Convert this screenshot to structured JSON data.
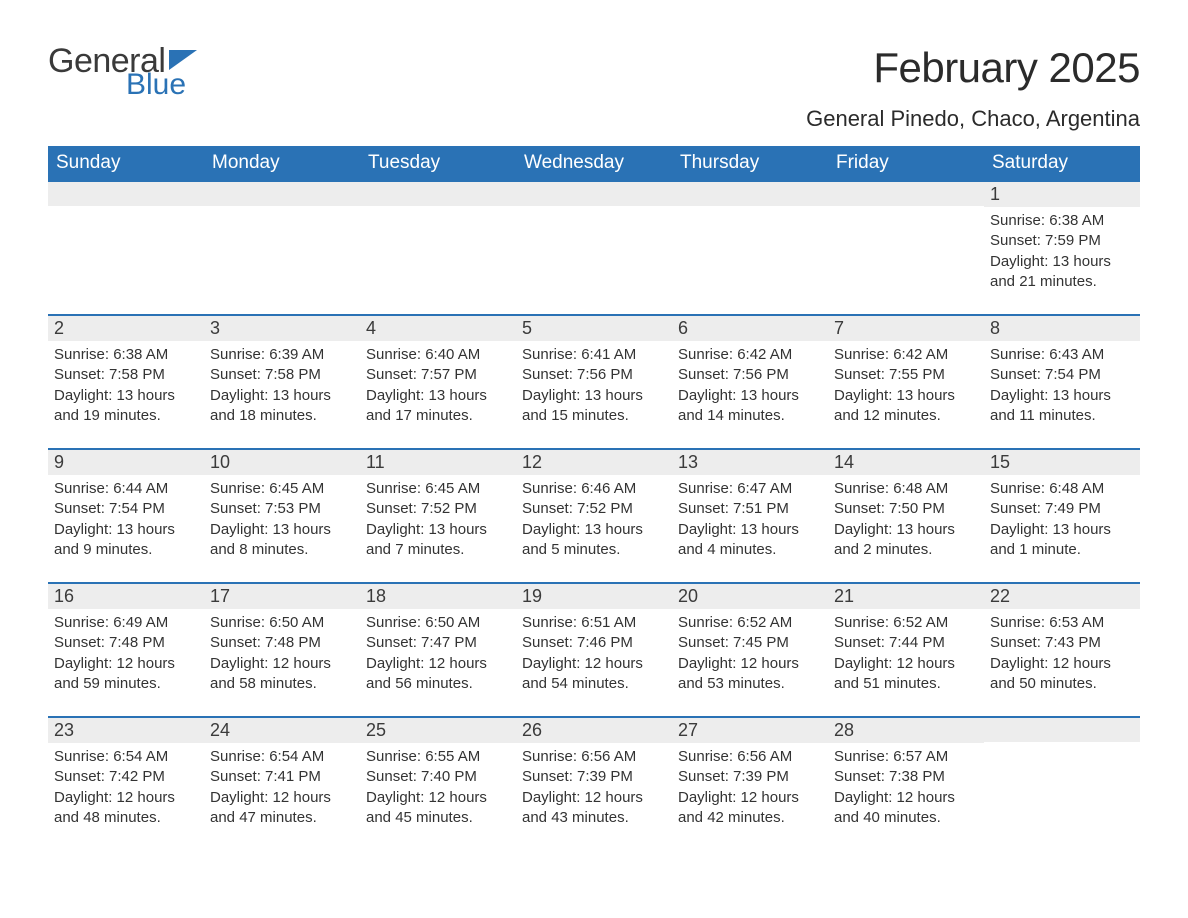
{
  "brand": {
    "word1": "General",
    "word2": "Blue",
    "text_color": "#3a3a3a",
    "accent_color": "#2a72b5"
  },
  "title": "February 2025",
  "location": "General Pinedo, Chaco, Argentina",
  "colors": {
    "header_bg": "#2a72b5",
    "header_text": "#ffffff",
    "daynum_bg": "#ededed",
    "body_text": "#333333",
    "divider": "#2a72b5",
    "page_bg": "#ffffff"
  },
  "day_names": [
    "Sunday",
    "Monday",
    "Tuesday",
    "Wednesday",
    "Thursday",
    "Friday",
    "Saturday"
  ],
  "weeks": [
    [
      {
        "day": "",
        "sunrise": "",
        "sunset": "",
        "daylight": ""
      },
      {
        "day": "",
        "sunrise": "",
        "sunset": "",
        "daylight": ""
      },
      {
        "day": "",
        "sunrise": "",
        "sunset": "",
        "daylight": ""
      },
      {
        "day": "",
        "sunrise": "",
        "sunset": "",
        "daylight": ""
      },
      {
        "day": "",
        "sunrise": "",
        "sunset": "",
        "daylight": ""
      },
      {
        "day": "",
        "sunrise": "",
        "sunset": "",
        "daylight": ""
      },
      {
        "day": "1",
        "sunrise": "Sunrise: 6:38 AM",
        "sunset": "Sunset: 7:59 PM",
        "daylight": "Daylight: 13 hours and 21 minutes."
      }
    ],
    [
      {
        "day": "2",
        "sunrise": "Sunrise: 6:38 AM",
        "sunset": "Sunset: 7:58 PM",
        "daylight": "Daylight: 13 hours and 19 minutes."
      },
      {
        "day": "3",
        "sunrise": "Sunrise: 6:39 AM",
        "sunset": "Sunset: 7:58 PM",
        "daylight": "Daylight: 13 hours and 18 minutes."
      },
      {
        "day": "4",
        "sunrise": "Sunrise: 6:40 AM",
        "sunset": "Sunset: 7:57 PM",
        "daylight": "Daylight: 13 hours and 17 minutes."
      },
      {
        "day": "5",
        "sunrise": "Sunrise: 6:41 AM",
        "sunset": "Sunset: 7:56 PM",
        "daylight": "Daylight: 13 hours and 15 minutes."
      },
      {
        "day": "6",
        "sunrise": "Sunrise: 6:42 AM",
        "sunset": "Sunset: 7:56 PM",
        "daylight": "Daylight: 13 hours and 14 minutes."
      },
      {
        "day": "7",
        "sunrise": "Sunrise: 6:42 AM",
        "sunset": "Sunset: 7:55 PM",
        "daylight": "Daylight: 13 hours and 12 minutes."
      },
      {
        "day": "8",
        "sunrise": "Sunrise: 6:43 AM",
        "sunset": "Sunset: 7:54 PM",
        "daylight": "Daylight: 13 hours and 11 minutes."
      }
    ],
    [
      {
        "day": "9",
        "sunrise": "Sunrise: 6:44 AM",
        "sunset": "Sunset: 7:54 PM",
        "daylight": "Daylight: 13 hours and 9 minutes."
      },
      {
        "day": "10",
        "sunrise": "Sunrise: 6:45 AM",
        "sunset": "Sunset: 7:53 PM",
        "daylight": "Daylight: 13 hours and 8 minutes."
      },
      {
        "day": "11",
        "sunrise": "Sunrise: 6:45 AM",
        "sunset": "Sunset: 7:52 PM",
        "daylight": "Daylight: 13 hours and 7 minutes."
      },
      {
        "day": "12",
        "sunrise": "Sunrise: 6:46 AM",
        "sunset": "Sunset: 7:52 PM",
        "daylight": "Daylight: 13 hours and 5 minutes."
      },
      {
        "day": "13",
        "sunrise": "Sunrise: 6:47 AM",
        "sunset": "Sunset: 7:51 PM",
        "daylight": "Daylight: 13 hours and 4 minutes."
      },
      {
        "day": "14",
        "sunrise": "Sunrise: 6:48 AM",
        "sunset": "Sunset: 7:50 PM",
        "daylight": "Daylight: 13 hours and 2 minutes."
      },
      {
        "day": "15",
        "sunrise": "Sunrise: 6:48 AM",
        "sunset": "Sunset: 7:49 PM",
        "daylight": "Daylight: 13 hours and 1 minute."
      }
    ],
    [
      {
        "day": "16",
        "sunrise": "Sunrise: 6:49 AM",
        "sunset": "Sunset: 7:48 PM",
        "daylight": "Daylight: 12 hours and 59 minutes."
      },
      {
        "day": "17",
        "sunrise": "Sunrise: 6:50 AM",
        "sunset": "Sunset: 7:48 PM",
        "daylight": "Daylight: 12 hours and 58 minutes."
      },
      {
        "day": "18",
        "sunrise": "Sunrise: 6:50 AM",
        "sunset": "Sunset: 7:47 PM",
        "daylight": "Daylight: 12 hours and 56 minutes."
      },
      {
        "day": "19",
        "sunrise": "Sunrise: 6:51 AM",
        "sunset": "Sunset: 7:46 PM",
        "daylight": "Daylight: 12 hours and 54 minutes."
      },
      {
        "day": "20",
        "sunrise": "Sunrise: 6:52 AM",
        "sunset": "Sunset: 7:45 PM",
        "daylight": "Daylight: 12 hours and 53 minutes."
      },
      {
        "day": "21",
        "sunrise": "Sunrise: 6:52 AM",
        "sunset": "Sunset: 7:44 PM",
        "daylight": "Daylight: 12 hours and 51 minutes."
      },
      {
        "day": "22",
        "sunrise": "Sunrise: 6:53 AM",
        "sunset": "Sunset: 7:43 PM",
        "daylight": "Daylight: 12 hours and 50 minutes."
      }
    ],
    [
      {
        "day": "23",
        "sunrise": "Sunrise: 6:54 AM",
        "sunset": "Sunset: 7:42 PM",
        "daylight": "Daylight: 12 hours and 48 minutes."
      },
      {
        "day": "24",
        "sunrise": "Sunrise: 6:54 AM",
        "sunset": "Sunset: 7:41 PM",
        "daylight": "Daylight: 12 hours and 47 minutes."
      },
      {
        "day": "25",
        "sunrise": "Sunrise: 6:55 AM",
        "sunset": "Sunset: 7:40 PM",
        "daylight": "Daylight: 12 hours and 45 minutes."
      },
      {
        "day": "26",
        "sunrise": "Sunrise: 6:56 AM",
        "sunset": "Sunset: 7:39 PM",
        "daylight": "Daylight: 12 hours and 43 minutes."
      },
      {
        "day": "27",
        "sunrise": "Sunrise: 6:56 AM",
        "sunset": "Sunset: 7:39 PM",
        "daylight": "Daylight: 12 hours and 42 minutes."
      },
      {
        "day": "28",
        "sunrise": "Sunrise: 6:57 AM",
        "sunset": "Sunset: 7:38 PM",
        "daylight": "Daylight: 12 hours and 40 minutes."
      },
      {
        "day": "",
        "sunrise": "",
        "sunset": "",
        "daylight": ""
      }
    ]
  ]
}
